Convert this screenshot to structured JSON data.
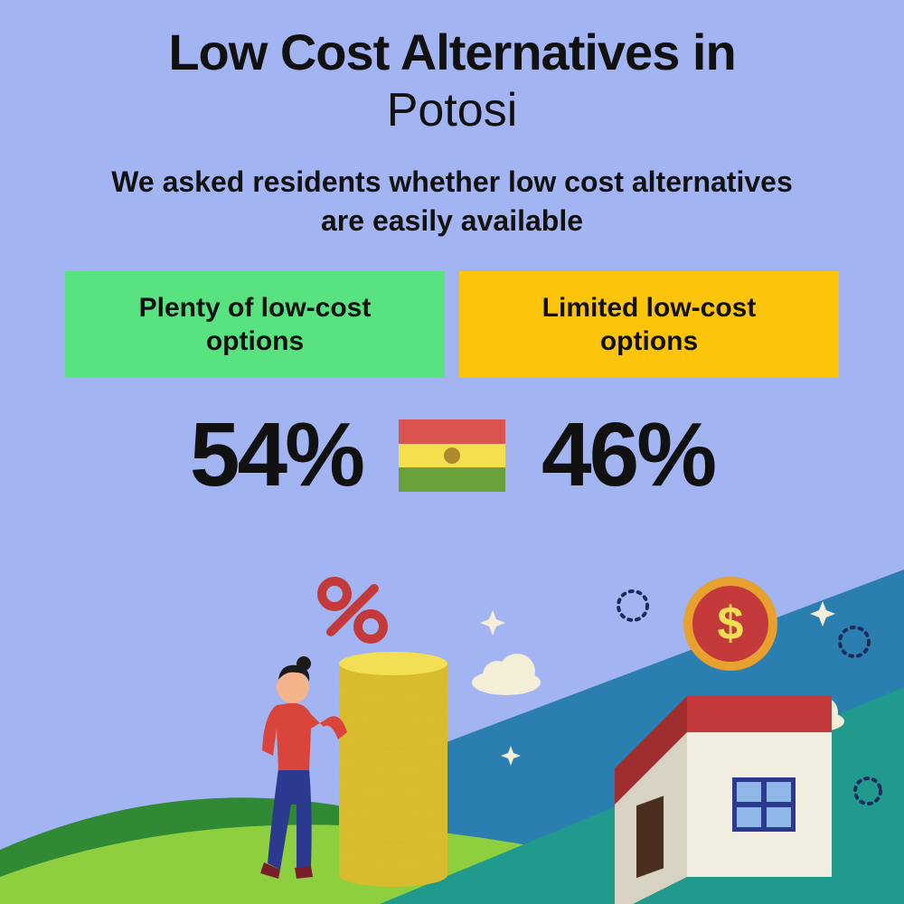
{
  "layout": {
    "background_color": "#a3b4f2",
    "text_color": "#111111"
  },
  "title": {
    "line1": "Low Cost Alternatives in",
    "line2": "Potosi",
    "line1_fontsize": 56,
    "line2_fontsize": 52,
    "color": "#111111"
  },
  "subtitle": {
    "text": "We asked residents whether low cost alternatives are easily available",
    "fontsize": 32,
    "color": "#111111"
  },
  "options": {
    "left": {
      "label": "Plenty of low-cost options",
      "bg_color": "#58e280",
      "text_color": "#111111",
      "fontsize": 30,
      "percent": "54%"
    },
    "right": {
      "label": "Limited low-cost options",
      "bg_color": "#fdc40c",
      "text_color": "#111111",
      "fontsize": 30,
      "percent": "46%"
    },
    "percent_fontsize": 100,
    "percent_color": "#111111"
  },
  "flag": {
    "stripe_colors": [
      "#d9534f",
      "#f4e04d",
      "#6aa03a"
    ],
    "emblem_color": "#b08830"
  },
  "scene": {
    "hill_dark": "#2f8a33",
    "hill_light": "#8ecf3f",
    "ground_slope": "#1f9a8d",
    "sky_triangle": "#2b7fb0",
    "cloud_color": "#f4eed6",
    "sparkle_color": "#f4eed6",
    "dotted_ring_color": "#1a2a5c",
    "coin_stack": {
      "coin_fill": "#f3df54",
      "coin_edge": "#d8bc2e",
      "count": 9
    },
    "percent_sign_color": "#c43a3a",
    "person": {
      "shirt": "#d9453a",
      "pants": "#2b3a8f",
      "skin": "#f3b38b",
      "hair": "#1a1a1a",
      "shoes": "#7a1f2a"
    },
    "house": {
      "wall": "#f1ede0",
      "wall_shadow": "#d8d3c2",
      "roof_top": "#c43a3a",
      "roof_front": "#a12e2e",
      "door": "#4a2f20",
      "window_frame": "#2b3a8f",
      "window_pane": "#8fb8e8"
    },
    "dollar_coin": {
      "outer": "#e8a02e",
      "inner": "#c43a3a",
      "symbol": "#f3df54"
    }
  }
}
